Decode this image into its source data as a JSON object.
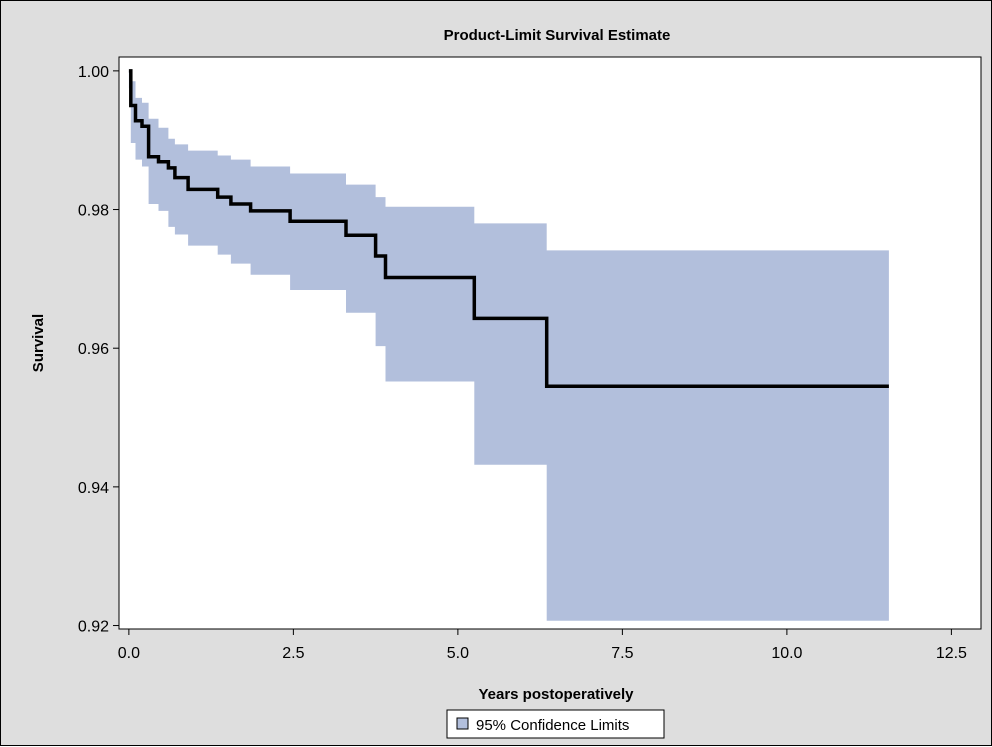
{
  "chart_data": {
    "type": "step",
    "title": "Product-Limit Survival Estimate",
    "xlabel": "Years postoperatively",
    "ylabel": "Survival",
    "xlim": [
      -0.15,
      12.95
    ],
    "ylim": [
      0.9195,
      1.002
    ],
    "x_ticks": [
      0.0,
      2.5,
      5.0,
      7.5,
      10.0,
      12.5
    ],
    "x_tick_labels": [
      "0.0",
      "2.5",
      "5.0",
      "7.5",
      "10.0",
      "12.5"
    ],
    "y_ticks": [
      0.92,
      0.94,
      0.96,
      0.98,
      1.0
    ],
    "y_tick_labels": [
      "0.92",
      "0.94",
      "0.96",
      "0.98",
      "1.00"
    ],
    "grid": false,
    "legend": {
      "position": "bottom-center",
      "entries": [
        "95% Confidence Limits"
      ]
    },
    "colors": {
      "background": "#dedede",
      "plot_area": "#ffffff",
      "band": "#b2bfdc",
      "line": "#000000"
    },
    "series": [
      {
        "kind": "step-line",
        "x": [
          0,
          0.03,
          0.1,
          0.2,
          0.3,
          0.45,
          0.6,
          0.7,
          0.9,
          1.35,
          1.55,
          1.85,
          2.45,
          3.3,
          3.75,
          3.9,
          5.25,
          6.35,
          11.55
        ],
        "y": [
          1.0,
          0.995,
          0.9928,
          0.992,
          0.9876,
          0.9869,
          0.986,
          0.9846,
          0.9829,
          0.9818,
          0.9808,
          0.9798,
          0.9783,
          0.9763,
          0.9733,
          0.9702,
          0.9643,
          0.9545,
          0.9545
        ]
      },
      {
        "name": "95% Confidence Limits",
        "kind": "band",
        "x": [
          0,
          0.03,
          0.1,
          0.2,
          0.3,
          0.45,
          0.6,
          0.7,
          0.9,
          1.35,
          1.55,
          1.85,
          2.45,
          3.3,
          3.75,
          3.9,
          5.25,
          6.35,
          11.55
        ],
        "lower": [
          0.9975,
          0.9896,
          0.9872,
          0.9862,
          0.9808,
          0.9798,
          0.9775,
          0.9764,
          0.9748,
          0.9735,
          0.9722,
          0.9706,
          0.9684,
          0.9651,
          0.9603,
          0.9552,
          0.9432,
          0.9207,
          0.9207
        ],
        "upper": [
          1.0,
          0.9985,
          0.9961,
          0.9954,
          0.9931,
          0.9918,
          0.9902,
          0.9894,
          0.9885,
          0.9878,
          0.9872,
          0.9862,
          0.9852,
          0.9836,
          0.9818,
          0.9804,
          0.978,
          0.9741,
          0.9741
        ]
      }
    ]
  }
}
